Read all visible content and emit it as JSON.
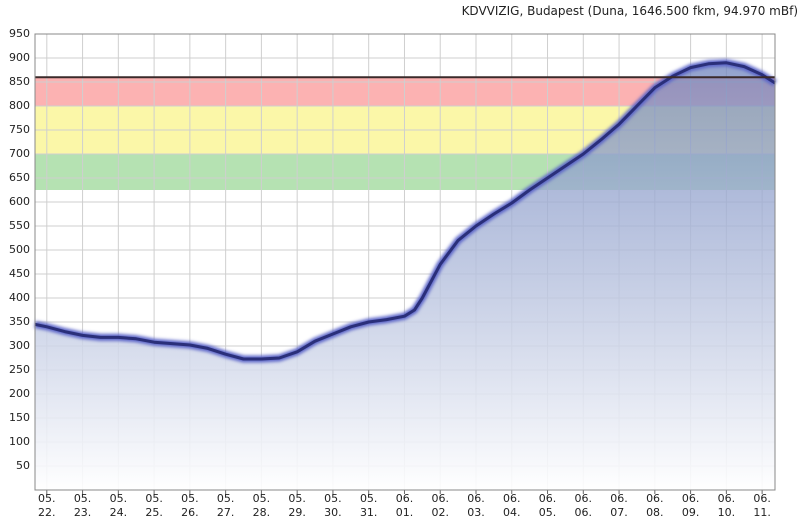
{
  "chart_data": {
    "type": "area",
    "title": "KDVVIZIG, Budapest (Duna, 1646.500 fkm, 94.970 mBf)",
    "x": [
      -0.33,
      0,
      0.5,
      1,
      1.5,
      2,
      2.5,
      3,
      3.5,
      4,
      4.5,
      5,
      5.5,
      6,
      6.5,
      7,
      7.5,
      8,
      8.5,
      9,
      9.5,
      10,
      10.28,
      10.5,
      11,
      11.5,
      12,
      12.5,
      13,
      13.5,
      14,
      14.5,
      15,
      15.5,
      16,
      16.5,
      17,
      17.5,
      18,
      18.5,
      19,
      19.5,
      20,
      20.36
    ],
    "values": [
      345,
      340,
      330,
      322,
      318,
      318,
      315,
      308,
      305,
      302,
      295,
      283,
      273,
      273,
      275,
      288,
      310,
      325,
      340,
      350,
      355,
      362,
      375,
      400,
      470,
      520,
      550,
      575,
      598,
      625,
      650,
      675,
      700,
      730,
      762,
      800,
      838,
      862,
      880,
      888,
      890,
      882,
      865,
      848
    ],
    "color": "#2a2f7a",
    "xlim": [
      -0.33,
      20.36
    ],
    "xticks": [
      {
        "value": 0,
        "label": "05.\n22."
      },
      {
        "value": 1,
        "label": "05.\n23."
      },
      {
        "value": 2,
        "label": "05.\n24."
      },
      {
        "value": 3,
        "label": "05.\n25."
      },
      {
        "value": 4,
        "label": "05.\n26."
      },
      {
        "value": 5,
        "label": "05.\n27."
      },
      {
        "value": 6,
        "label": "05.\n28."
      },
      {
        "value": 7,
        "label": "05.\n29."
      },
      {
        "value": 8,
        "label": "05.\n30."
      },
      {
        "value": 9,
        "label": "05.\n31."
      },
      {
        "value": 10,
        "label": "06.\n01."
      },
      {
        "value": 11,
        "label": "06.\n02."
      },
      {
        "value": 12,
        "label": "06.\n03."
      },
      {
        "value": 13,
        "label": "06.\n04."
      },
      {
        "value": 14,
        "label": "06.\n05."
      },
      {
        "value": 15,
        "label": "06.\n06."
      },
      {
        "value": 16,
        "label": "06.\n07."
      },
      {
        "value": 17,
        "label": "06.\n08."
      },
      {
        "value": 18,
        "label": "06.\n09."
      },
      {
        "value": 19,
        "label": "06.\n10."
      },
      {
        "value": 20,
        "label": "06.\n11."
      }
    ],
    "ylim": [
      0,
      950
    ],
    "yticks": [
      50,
      100,
      150,
      200,
      250,
      300,
      350,
      400,
      450,
      500,
      550,
      600,
      650,
      700,
      750,
      800,
      850,
      900,
      950
    ],
    "grid": true,
    "bands": [
      {
        "from": 625,
        "to": 700,
        "color": "#b5e2b2"
      },
      {
        "from": 700,
        "to": 800,
        "color": "#fbf7a8"
      },
      {
        "from": 800,
        "to": 860,
        "color": "#fcb2b2"
      }
    ],
    "threshold": {
      "value": 860,
      "color": "#3a2a2a"
    }
  }
}
